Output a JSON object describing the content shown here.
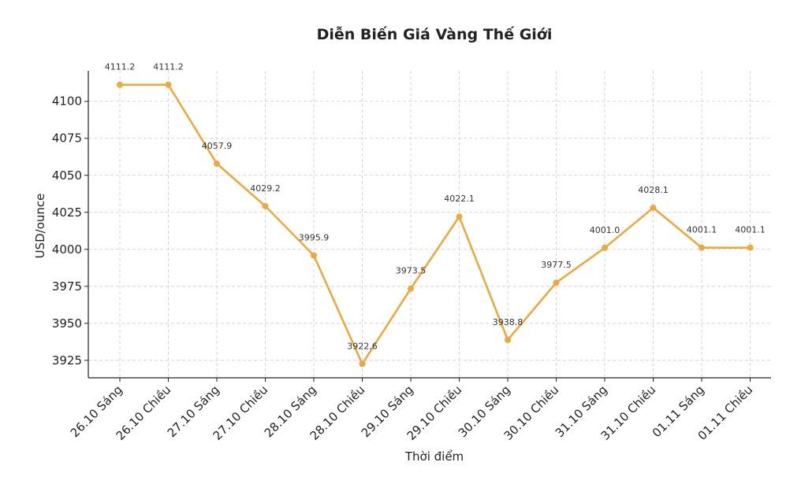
{
  "chart_data": {
    "type": "line",
    "title": "Diễn Biến Giá Vàng Thế Giới",
    "xlabel": "Thời điểm",
    "ylabel": "USD/ounce",
    "categories": [
      "26.10 Sáng",
      "26.10 Chiều",
      "27.10 Sáng",
      "27.10 Chiều",
      "28.10 Sáng",
      "28.10 Chiều",
      "29.10 Sáng",
      "29.10 Chiều",
      "30.10 Sáng",
      "30.10 Chiều",
      "31.10 Sáng",
      "31.10 Chiều",
      "01.11 Sáng",
      "01.11 Chiều"
    ],
    "values": [
      4111.2,
      4111.2,
      4057.9,
      4029.2,
      3995.9,
      3922.6,
      3973.5,
      4022.1,
      3938.8,
      3977.5,
      4001.0,
      4028.1,
      4001.1,
      4001.1
    ],
    "data_labels": [
      "4111.2",
      "4111.2",
      "4057.9",
      "4029.2",
      "3995.9",
      "3922.6",
      "3973.5",
      "4022.1",
      "3938.8",
      "3977.5",
      "4001.0",
      "4028.1",
      "4001.1",
      "4001.1"
    ],
    "yticks": [
      3925,
      3950,
      3975,
      4000,
      4025,
      4050,
      4075,
      4100
    ],
    "ylim": [
      3913.2,
      4120.6
    ],
    "grid": true,
    "line_color": "#EDA93E"
  }
}
